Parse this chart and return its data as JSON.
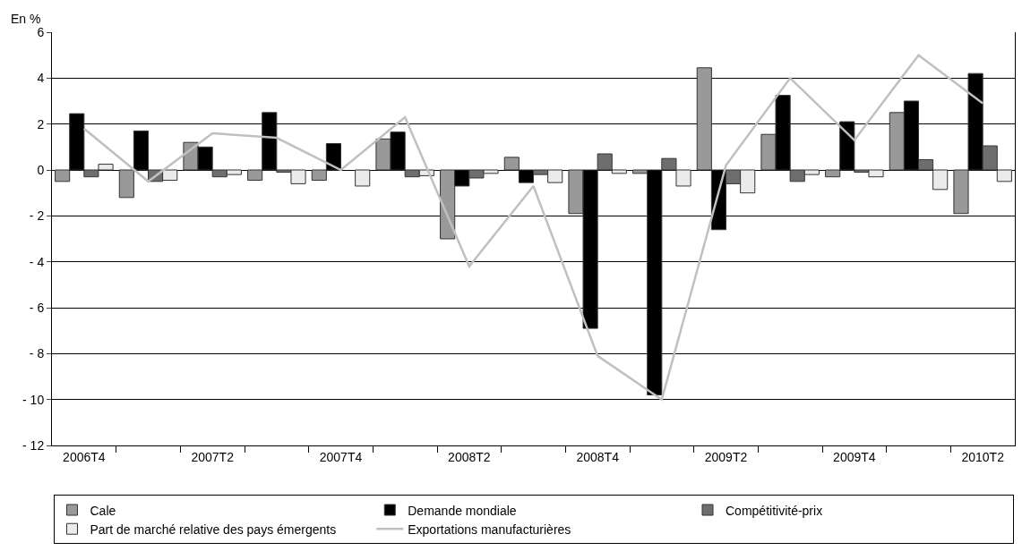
{
  "chart_data": {
    "type": "bar",
    "ylabel": "En %",
    "categories": [
      "2006T4",
      null,
      "2007T2",
      null,
      "2007T4",
      null,
      "2008T2",
      null,
      "2008T4",
      null,
      "2009T2",
      null,
      "2009T4",
      null,
      "2010T2"
    ],
    "series": [
      {
        "name": "Cale",
        "color": "#999999",
        "values": [
          -0.5,
          -1.2,
          1.2,
          -0.45,
          -0.45,
          1.35,
          -3.0,
          0.55,
          -1.9,
          -0.15,
          4.45,
          1.55,
          -0.3,
          2.5,
          -1.9
        ]
      },
      {
        "name": "Demande mondiale",
        "color": "#000000",
        "values": [
          2.45,
          1.7,
          1.0,
          2.5,
          1.15,
          1.65,
          -0.7,
          -0.55,
          -6.9,
          -9.8,
          -2.6,
          3.25,
          2.1,
          3.0,
          4.2
        ]
      },
      {
        "name": "Compétitivité-prix",
        "color": "#6e6e6e",
        "values": [
          -0.3,
          -0.5,
          -0.3,
          -0.1,
          null,
          -0.3,
          -0.35,
          -0.2,
          0.7,
          0.5,
          -0.6,
          -0.5,
          -0.1,
          0.45,
          1.05
        ]
      },
      {
        "name": "Part de marché relative des pays émergents",
        "color": "#ebebeb",
        "values": [
          0.25,
          -0.45,
          -0.2,
          -0.6,
          -0.7,
          -0.25,
          -0.15,
          -0.55,
          -0.15,
          -0.7,
          -1.0,
          -0.2,
          -0.3,
          -0.85,
          -0.5
        ]
      },
      {
        "name": "Exportations manufacturières",
        "type": "line",
        "color": "#c0c0c0",
        "values": [
          1.8,
          -0.5,
          1.6,
          1.4,
          0,
          2.3,
          -4.2,
          -0.7,
          -8.1,
          -10.0,
          0.2,
          4.0,
          1.3,
          5.0,
          2.9
        ]
      }
    ],
    "ylim": [
      -12,
      6
    ],
    "yticks": [
      {
        "value": -12,
        "label": "- 12"
      },
      {
        "value": -10,
        "label": "- 10"
      },
      {
        "value": -8,
        "label": "- 8"
      },
      {
        "value": -6,
        "label": "- 6"
      },
      {
        "value": -4,
        "label": "- 4"
      },
      {
        "value": -2,
        "label": "- 2"
      },
      0,
      2,
      4,
      6
    ],
    "grid": "y",
    "legend": "bottom"
  }
}
